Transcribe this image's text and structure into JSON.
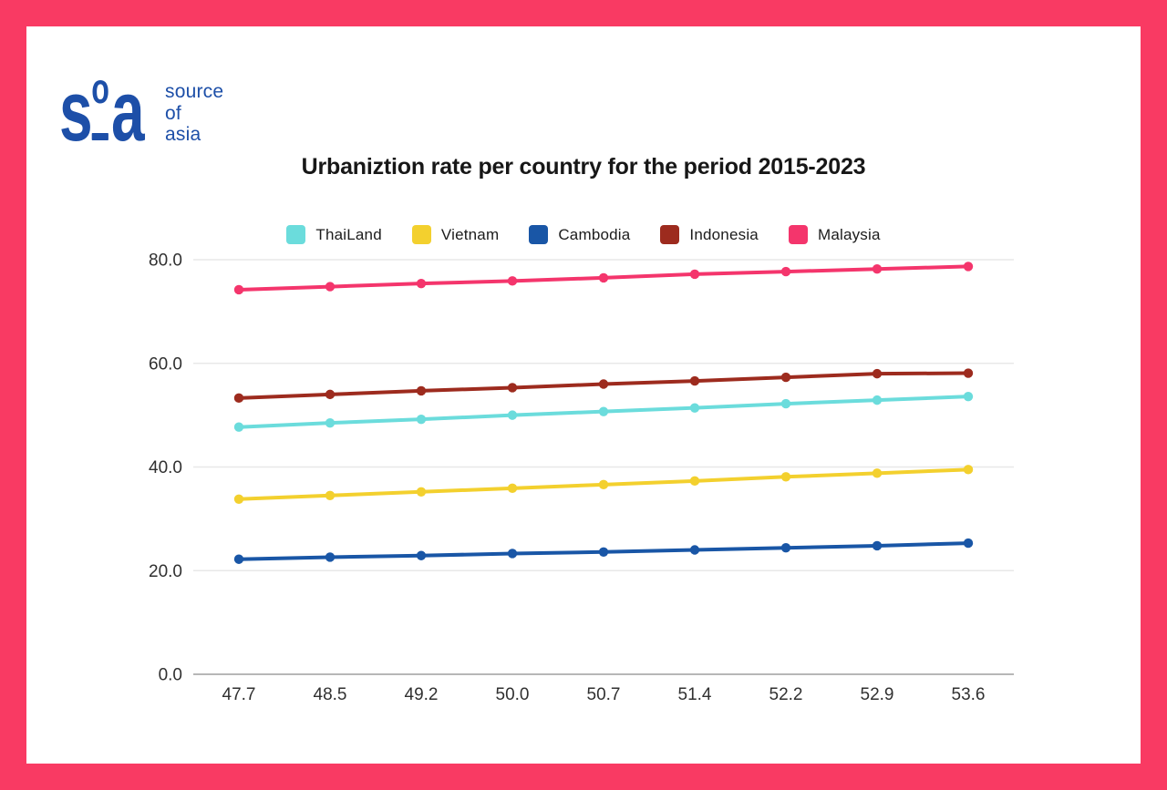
{
  "frame": {
    "border_color": "#F93A63",
    "background": "#ffffff"
  },
  "logo": {
    "mark_s": "s",
    "mark_o": "o",
    "mark_a": "a",
    "color": "#1D4FA8",
    "tagline_lines": [
      "source",
      "of",
      "asia"
    ]
  },
  "title": "Urbaniztion rate per country for the period 2015-2023",
  "chart_data": {
    "type": "line",
    "title": "Urbaniztion rate per country for the period 2015-2023",
    "xlabel": "",
    "ylabel": "",
    "x_tick_labels": [
      "47.7",
      "48.5",
      "49.2",
      "50.0",
      "50.7",
      "51.4",
      "52.2",
      "52.9",
      "53.6"
    ],
    "y_tick_labels": [
      "0.0",
      "20.0",
      "40.0",
      "60.0",
      "80.0"
    ],
    "ylim": [
      0,
      85
    ],
    "grid": true,
    "legend_position": "top",
    "marker": "circle",
    "series": [
      {
        "name": "ThaiLand",
        "color": "#6BDCDC",
        "values": [
          47.7,
          48.5,
          49.2,
          50.0,
          50.7,
          51.4,
          52.2,
          52.9,
          53.6
        ]
      },
      {
        "name": "Vietnam",
        "color": "#F3D02E",
        "values": [
          33.8,
          34.5,
          35.2,
          35.9,
          36.6,
          37.3,
          38.1,
          38.8,
          39.5
        ]
      },
      {
        "name": "Cambodia",
        "color": "#1956A6",
        "values": [
          22.2,
          22.6,
          22.9,
          23.3,
          23.6,
          24.0,
          24.4,
          24.8,
          25.3
        ]
      },
      {
        "name": "Indonesia",
        "color": "#9D2B1E",
        "values": [
          53.3,
          54.0,
          54.7,
          55.3,
          56.0,
          56.6,
          57.3,
          58.0,
          58.1
        ]
      },
      {
        "name": "Malaysia",
        "color": "#F4356C",
        "values": [
          74.2,
          74.8,
          75.4,
          75.9,
          76.5,
          77.2,
          77.7,
          78.2,
          78.7
        ]
      }
    ]
  }
}
